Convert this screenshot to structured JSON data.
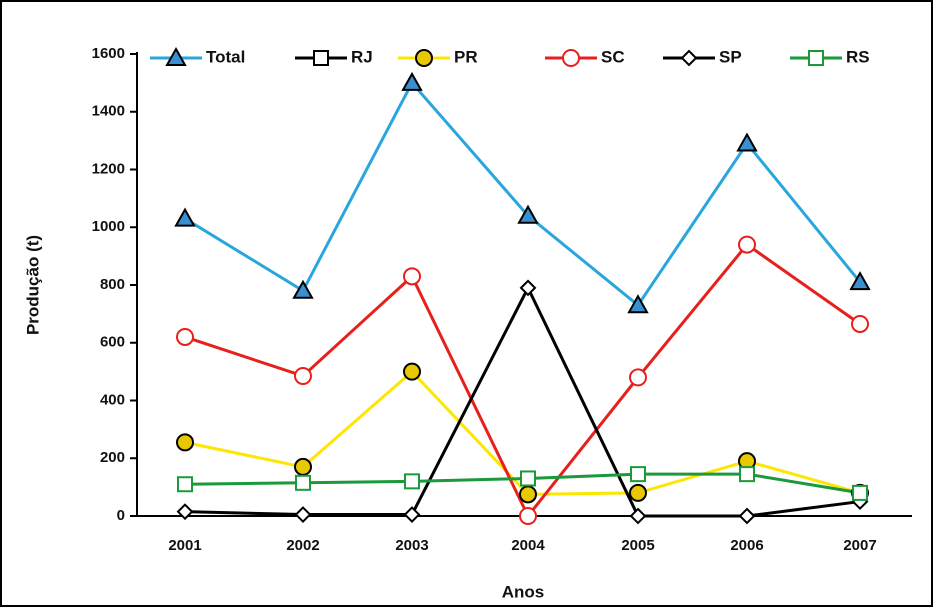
{
  "chart_data": {
    "type": "line",
    "x_label": "Anos",
    "y_label": "Produção (t)",
    "categories": [
      "2001",
      "2002",
      "2003",
      "2004",
      "2005",
      "2006",
      "2007"
    ],
    "ylim": [
      0,
      1600
    ],
    "yticks": [
      0,
      200,
      400,
      600,
      800,
      1000,
      1200,
      1400,
      1600
    ],
    "series": [
      {
        "name": "Total",
        "color": "#29a6de",
        "marker": "triangle",
        "marker_fill": "#3a8fd0",
        "values": [
          1030,
          780,
          1500,
          1040,
          730,
          1290,
          810
        ]
      },
      {
        "name": "RJ",
        "color": "#000000",
        "marker": "square",
        "marker_fill": "#ffffff",
        "values": [
          null,
          null,
          null,
          null,
          null,
          null,
          null
        ]
      },
      {
        "name": "PR",
        "color": "#ffe600",
        "marker": "circle",
        "marker_fill": "#e8c800",
        "marker_stroke": "#000000",
        "values": [
          255,
          170,
          500,
          75,
          80,
          190,
          80
        ]
      },
      {
        "name": "SC",
        "color": "#e8201c",
        "marker": "circle",
        "marker_fill": "#ffffff",
        "values": [
          620,
          485,
          830,
          0,
          480,
          940,
          665
        ]
      },
      {
        "name": "SP",
        "color": "#000000",
        "marker": "diamond",
        "marker_fill": "#ffffff",
        "values": [
          15,
          5,
          5,
          790,
          0,
          0,
          50
        ]
      },
      {
        "name": "RS",
        "color": "#1a9a3a",
        "marker": "square",
        "marker_fill": "#ffffff",
        "values": [
          110,
          115,
          120,
          130,
          145,
          145,
          80
        ]
      }
    ]
  }
}
